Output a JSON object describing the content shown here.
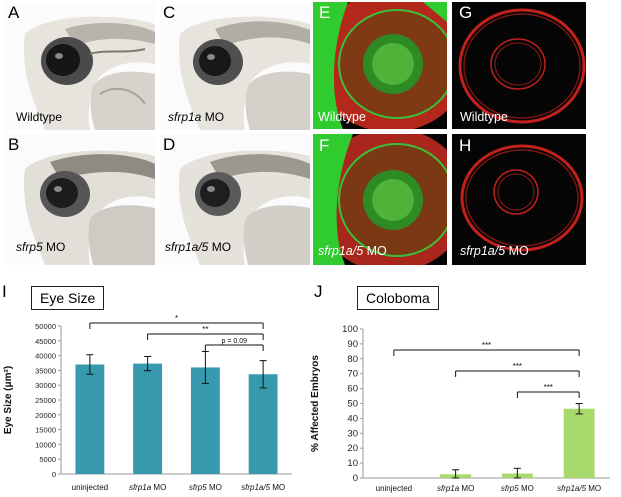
{
  "panels": {
    "A": {
      "letter": "A",
      "label": "Wildtype"
    },
    "B": {
      "letter": "B",
      "label_ital": "sfrp5",
      "label_rest": " MO"
    },
    "C": {
      "letter": "C",
      "label_ital": "sfrp1a",
      "label_rest": " MO"
    },
    "D": {
      "letter": "D",
      "label_ital": "sfrp1a/5",
      "label_rest": " MO"
    },
    "E": {
      "letter": "E",
      "label": "Wildtype"
    },
    "F": {
      "letter": "F",
      "label_ital": "sfrp1a/5",
      "label_rest": " MO"
    },
    "G": {
      "letter": "G",
      "label": "Wildtype"
    },
    "H": {
      "letter": "H",
      "label_ital": "sfrp1a/5",
      "label_rest": " MO"
    },
    "I": {
      "letter": "I"
    },
    "J": {
      "letter": "J"
    }
  },
  "colors": {
    "eye_bar": "#3799ad",
    "coloboma_bar": "#a8d96b",
    "gfp": "#3ad13a",
    "rfp": "#c2201c"
  },
  "chart_data": [
    {
      "type": "bar",
      "title": "Eye Size",
      "ylabel": "Eye Size (μm²)",
      "xlabel": "",
      "categories": [
        {
          "ital": "",
          "rest": "uninjected"
        },
        {
          "ital": "sfrp1a",
          "rest": " MO"
        },
        {
          "ital": "sfrp5",
          "rest": " MO"
        },
        {
          "ital": "sfrp1a/5",
          "rest": " MO"
        }
      ],
      "values": [
        37000,
        37300,
        36000,
        33700
      ],
      "errors": [
        3300,
        2400,
        5400,
        4600
      ],
      "ylim": [
        0,
        50000
      ],
      "yticks": [
        "0",
        "5000",
        "10000",
        "15000",
        "20000",
        "25000",
        "30000",
        "35000",
        "40000",
        "45000",
        "50000"
      ],
      "grid": false,
      "significance": [
        {
          "from": 0,
          "to": 3,
          "label": "*"
        },
        {
          "from": 1,
          "to": 3,
          "label": "**"
        },
        {
          "from": 2,
          "to": 3,
          "label": "p = 0.09"
        }
      ]
    },
    {
      "type": "bar",
      "title": "Coloboma",
      "ylabel": "% Affected Embryos",
      "xlabel": "",
      "categories": [
        {
          "ital": "",
          "rest": "uninjected"
        },
        {
          "ital": "sfrp1a",
          "rest": " MO"
        },
        {
          "ital": "sfrp5",
          "rest": " MO"
        },
        {
          "ital": "sfrp1a/5",
          "rest": " MO"
        }
      ],
      "values": [
        0,
        2.5,
        3,
        46.5
      ],
      "errors": [
        0,
        3,
        3.5,
        3.5
      ],
      "ylim": [
        0,
        100
      ],
      "yticks": [
        "0",
        "10",
        "20",
        "30",
        "40",
        "50",
        "60",
        "70",
        "80",
        "90",
        "100"
      ],
      "grid": false,
      "significance": [
        {
          "from": 0,
          "to": 3,
          "label": "***"
        },
        {
          "from": 1,
          "to": 3,
          "label": "***"
        },
        {
          "from": 2,
          "to": 3,
          "label": "***"
        }
      ]
    }
  ]
}
